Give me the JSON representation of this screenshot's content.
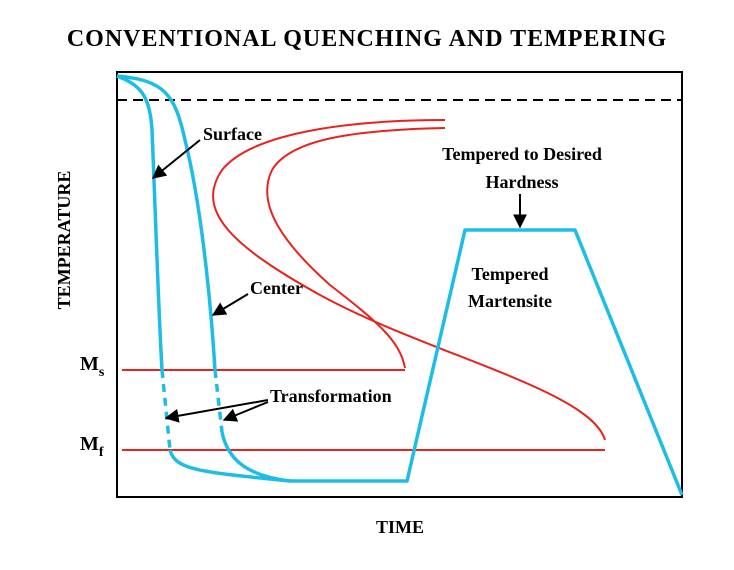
{
  "title": "CONVENTIONAL QUENCHING AND TEMPERING",
  "axes": {
    "x_label": "TIME",
    "y_label": "TEMPERATURE"
  },
  "levels": [
    {
      "symbol": "M",
      "subscript": "s"
    },
    {
      "symbol": "M",
      "subscript": "f"
    }
  ],
  "annotations": {
    "surface": "Surface",
    "center": "Center",
    "transformation": "Transformation",
    "tempered_to_hardness": [
      "Tempered  to Desired",
      "Hardness"
    ],
    "tempered_martensite": [
      "Tempered",
      "Martensite"
    ]
  }
}
